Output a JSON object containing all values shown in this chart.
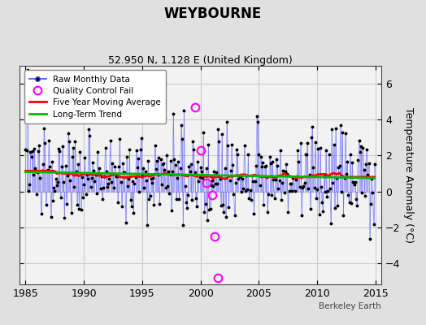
{
  "title": "WEYBOURNE",
  "subtitle": "52.950 N, 1.128 E (United Kingdom)",
  "ylabel": "Temperature Anomaly (°C)",
  "credit": "Berkeley Earth",
  "xlim": [
    1984.5,
    2015.5
  ],
  "ylim": [
    -5.2,
    7.0
  ],
  "yticks": [
    -4,
    -2,
    0,
    2,
    4,
    6
  ],
  "xticks": [
    1985,
    1990,
    1995,
    2000,
    2005,
    2010,
    2015
  ],
  "bg_color": "#e0e0e0",
  "plot_bg_color": "#f2f2f2",
  "raw_line_color": "#4444ff",
  "raw_dot_color": "#000000",
  "ma_color": "#ff0000",
  "trend_color": "#00bb00",
  "qc_color": "#ff00ff",
  "seed": 137,
  "start_year": 1985,
  "n_years": 30,
  "qc_points": [
    [
      1999.5,
      4.7
    ],
    [
      2000.0,
      2.3
    ],
    [
      2000.5,
      0.5
    ],
    [
      2001.0,
      -0.2
    ],
    [
      2001.2,
      -2.5
    ],
    [
      2001.5,
      -4.8
    ]
  ]
}
